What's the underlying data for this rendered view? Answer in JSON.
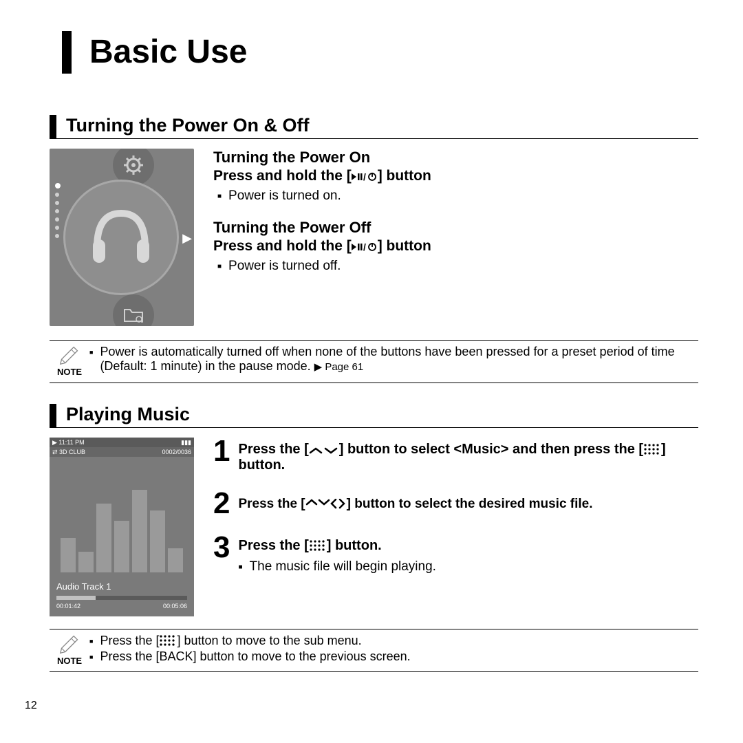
{
  "page_number": "12",
  "title": "Basic Use",
  "section1": {
    "heading": "Turning the Power On & Off",
    "on": {
      "title": "Turning the Power On",
      "instruction_pre": "Press and hold the [",
      "instruction_post": "] button",
      "result": "Power is turned on."
    },
    "off": {
      "title": "Turning the Power Off",
      "instruction_pre": "Press and hold the [",
      "instruction_post": "] button",
      "result": "Power is turned off."
    }
  },
  "note1": {
    "label": "NOTE",
    "text": "Power is automatically turned off when none of the buttons have been pressed for a preset period of time (Default: 1 minute) in the pause mode. ",
    "page_ref": "▶ Page 61"
  },
  "section2": {
    "heading": "Playing Music",
    "player": {
      "time": "▶ 11:11 PM",
      "mode": "⇄ 3D CLUB",
      "counter": "0002/0036",
      "track": "Audio Track 1",
      "elapsed": "00:01:42",
      "total": "00:05:06",
      "bars": [
        50,
        30,
        100,
        75,
        120,
        90,
        35
      ]
    },
    "steps": [
      {
        "num": "1",
        "pre": "Press the [",
        "mid": "] button to select <Music> and then press the [",
        "post": "] button."
      },
      {
        "num": "2",
        "pre": "Press the [",
        "post": "] button to select the desired music file."
      },
      {
        "num": "3",
        "pre": "Press the [",
        "post": "] button.",
        "result": "The music file will begin playing."
      }
    ]
  },
  "note2": {
    "label": "NOTE",
    "b1_pre": "Press the [",
    "b1_post": "] button to move to the sub menu.",
    "b2": "Press the [BACK] button to move to the previous screen."
  },
  "colors": {
    "text": "#000000",
    "bg": "#ffffff",
    "device_gray": "#808080",
    "light_gray": "#a8a8a8"
  }
}
